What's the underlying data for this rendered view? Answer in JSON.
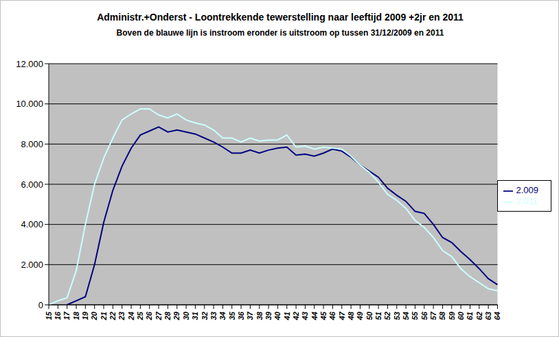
{
  "chart_data": {
    "type": "line",
    "title": "Administr.+Onderst - Loontrekkende tewerstelling naar leeftijd 2009 +2jr en 2011",
    "subtitle": "Boven de blauwe lijn is instroom eronder is uitstroom op tussen 31/12/2009 en 2011",
    "categories": [
      "15",
      "16",
      "17",
      "18",
      "19",
      "20",
      "21",
      "22",
      "23",
      "24",
      "25",
      "26",
      "27",
      "28",
      "29",
      "30",
      "31",
      "32",
      "33",
      "34",
      "35",
      "36",
      "37",
      "38",
      "39",
      "40",
      "41",
      "42",
      "43",
      "44",
      "45",
      "46",
      "47",
      "48",
      "49",
      "50",
      "51",
      "52",
      "53",
      "54",
      "55",
      "56",
      "57",
      "58",
      "59",
      "60",
      "61",
      "62",
      "63",
      "64"
    ],
    "series": [
      {
        "name": "2.009",
        "color": "#000080",
        "marker": "none",
        "line_style": "solid",
        "values": [
          null,
          null,
          0,
          200,
          400,
          2000,
          4100,
          5700,
          6900,
          7800,
          8450,
          8650,
          8850,
          8600,
          8700,
          8600,
          8500,
          8300,
          8100,
          7850,
          7550,
          7550,
          7700,
          7550,
          7700,
          7800,
          7850,
          7450,
          7500,
          7400,
          7550,
          7750,
          7650,
          7350,
          6950,
          6650,
          6350,
          5800,
          5450,
          5150,
          4650,
          4550,
          4000,
          3350,
          3100,
          2650,
          2250,
          1800,
          1300,
          1000
        ]
      },
      {
        "name": "2.011",
        "color": "#ccffff",
        "marker": "none",
        "line_style": "solid",
        "values": [
          0,
          200,
          350,
          1700,
          4000,
          6000,
          7300,
          8300,
          9200,
          9500,
          9750,
          9750,
          9450,
          9300,
          9500,
          9200,
          9050,
          8950,
          8700,
          8300,
          8300,
          8100,
          8300,
          8150,
          8200,
          8200,
          8450,
          7850,
          7900,
          7750,
          7850,
          7800,
          7750,
          7400,
          6950,
          6600,
          6100,
          5500,
          5200,
          4800,
          4200,
          3850,
          3350,
          2700,
          2400,
          1800,
          1400,
          1100,
          800,
          700
        ]
      }
    ],
    "ylim": [
      0,
      12000
    ],
    "yticks": [
      0,
      {
        "value": 2000,
        "label": "2.000"
      },
      {
        "value": 4000,
        "label": "4.000"
      },
      {
        "value": 6000,
        "label": "6.000"
      },
      {
        "value": 8000,
        "label": "8.000"
      },
      {
        "value": 10000,
        "label": "10.000"
      },
      {
        "value": 12000,
        "label": "12.000"
      }
    ],
    "grid": true,
    "legend": "right"
  }
}
